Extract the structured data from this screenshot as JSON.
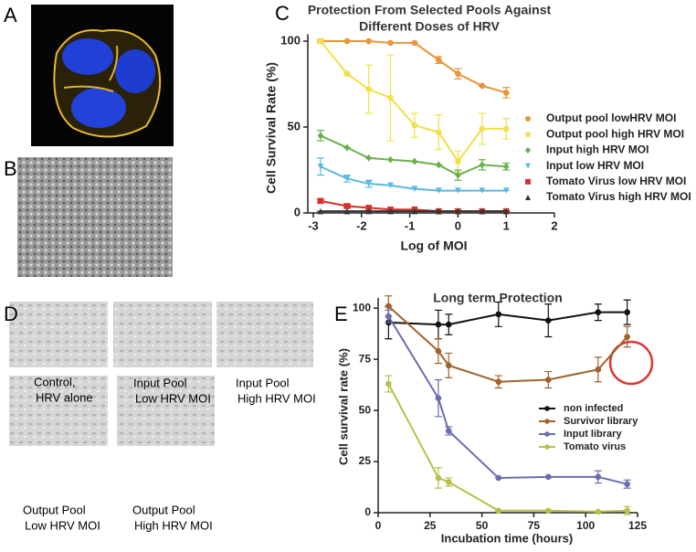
{
  "panels": {
    "labels": [
      "A",
      "B",
      "C",
      "D",
      "E"
    ],
    "captions": [
      [
        "Control,",
        "HRV alone"
      ],
      [
        "Input Pool",
        "Low HRV MOI"
      ],
      [
        "Input Pool",
        "High HRV MOI"
      ],
      [
        "Output Pool",
        "Low HRV MOI"
      ],
      [
        "Output Pool",
        "High HRV MOI"
      ]
    ]
  },
  "chart_data": [
    {
      "type": "line",
      "title": [
        "Protection From Selected Pools Against",
        "Different Doses of HRV"
      ],
      "x_label": "Log of MOI",
      "y_label": "Cell Survival Rate (%)",
      "x": [
        -2.85,
        -2.3,
        -1.85,
        -1.4,
        -0.9,
        -0.4,
        0,
        0.5,
        1
      ],
      "xlim": [
        -3,
        2
      ],
      "xticks": [
        -3,
        -2,
        -1,
        0,
        1,
        2
      ],
      "ylim": [
        0,
        104
      ],
      "yticks": [
        0,
        50,
        100
      ],
      "series": [
        {
          "name": "Output pool lowHRV  MOI",
          "color": "#e8963a",
          "marker": "circle",
          "values": [
            100,
            100,
            100,
            99,
            99,
            89,
            81,
            74,
            70
          ],
          "errors": [
            1,
            0,
            0,
            0,
            0,
            2,
            3,
            0,
            3
          ]
        },
        {
          "name": "Output pool high HRV MOI",
          "color": "#f0e04a",
          "marker": "circle",
          "values": [
            100,
            81,
            72,
            67,
            51,
            47,
            30,
            49,
            49
          ],
          "errors": [
            0,
            0,
            14,
            25,
            7,
            10,
            6,
            9,
            6
          ]
        },
        {
          "name": "Input high HRV  MOI",
          "color": "#6ab04c",
          "marker": "diamond",
          "values": [
            45,
            38,
            32,
            31,
            30,
            28,
            22,
            28,
            27
          ],
          "errors": [
            3,
            0,
            0,
            0,
            0,
            0,
            3,
            3,
            2
          ]
        },
        {
          "name": "Input low HRV  MOI",
          "color": "#5bb8e0",
          "marker": "triangle-down",
          "values": [
            27,
            20,
            17,
            16,
            14,
            13,
            13,
            13,
            13
          ],
          "errors": [
            5,
            2,
            2,
            0,
            0,
            0,
            0,
            0,
            0
          ]
        },
        {
          "name": "Tomato Virus low HRV MOI",
          "color": "#d9302a",
          "marker": "square",
          "values": [
            7,
            4,
            3,
            2,
            2,
            1,
            1,
            1,
            1
          ],
          "errors": [
            1,
            1,
            0,
            0,
            0,
            0,
            0,
            0,
            0
          ]
        },
        {
          "name": "Tomato Virus high HRV MOI",
          "color": "#333333",
          "marker": "triangle",
          "values": [
            1,
            1,
            1,
            1,
            1,
            1,
            1,
            1,
            1
          ],
          "errors": [
            0,
            0,
            0,
            0,
            0,
            0,
            0,
            0,
            0
          ]
        }
      ]
    },
    {
      "type": "line",
      "title": "Long term Protection",
      "x_label": "Incubation time (hours)",
      "y_label": "Cell survival rate (%)",
      "x": [
        5,
        29,
        34,
        58,
        82,
        106,
        120
      ],
      "xlim": [
        0,
        125
      ],
      "xticks": [
        0,
        25,
        50,
        75,
        100,
        125
      ],
      "ylim": [
        0,
        105
      ],
      "yticks": [
        0,
        25,
        50,
        75,
        100
      ],
      "series": [
        {
          "name": "non infected",
          "color": "#111111",
          "marker": "circle",
          "values": [
            93,
            92,
            92,
            97,
            94,
            98,
            98
          ],
          "errors": [
            8,
            7,
            5,
            6,
            8,
            4,
            6
          ]
        },
        {
          "name": "Survivor library",
          "color": "#a0622d",
          "marker": "circle",
          "values": [
            101,
            79,
            72,
            64,
            65,
            70,
            86
          ],
          "errors": [
            5,
            6,
            6,
            3,
            4,
            6,
            5
          ]
        },
        {
          "name": "Input library",
          "color": "#6a6db0",
          "marker": "circle",
          "values": [
            96,
            56,
            40,
            17,
            17.5,
            17.5,
            14
          ],
          "errors": [
            3,
            9,
            2,
            0,
            0,
            3,
            2
          ]
        },
        {
          "name": "Tomato virus",
          "color": "#b8c04a",
          "marker": "circle",
          "values": [
            63,
            17,
            15,
            1,
            1,
            0.5,
            1
          ],
          "errors": [
            4,
            5,
            2,
            0,
            0,
            0,
            2
          ]
        }
      ]
    }
  ]
}
